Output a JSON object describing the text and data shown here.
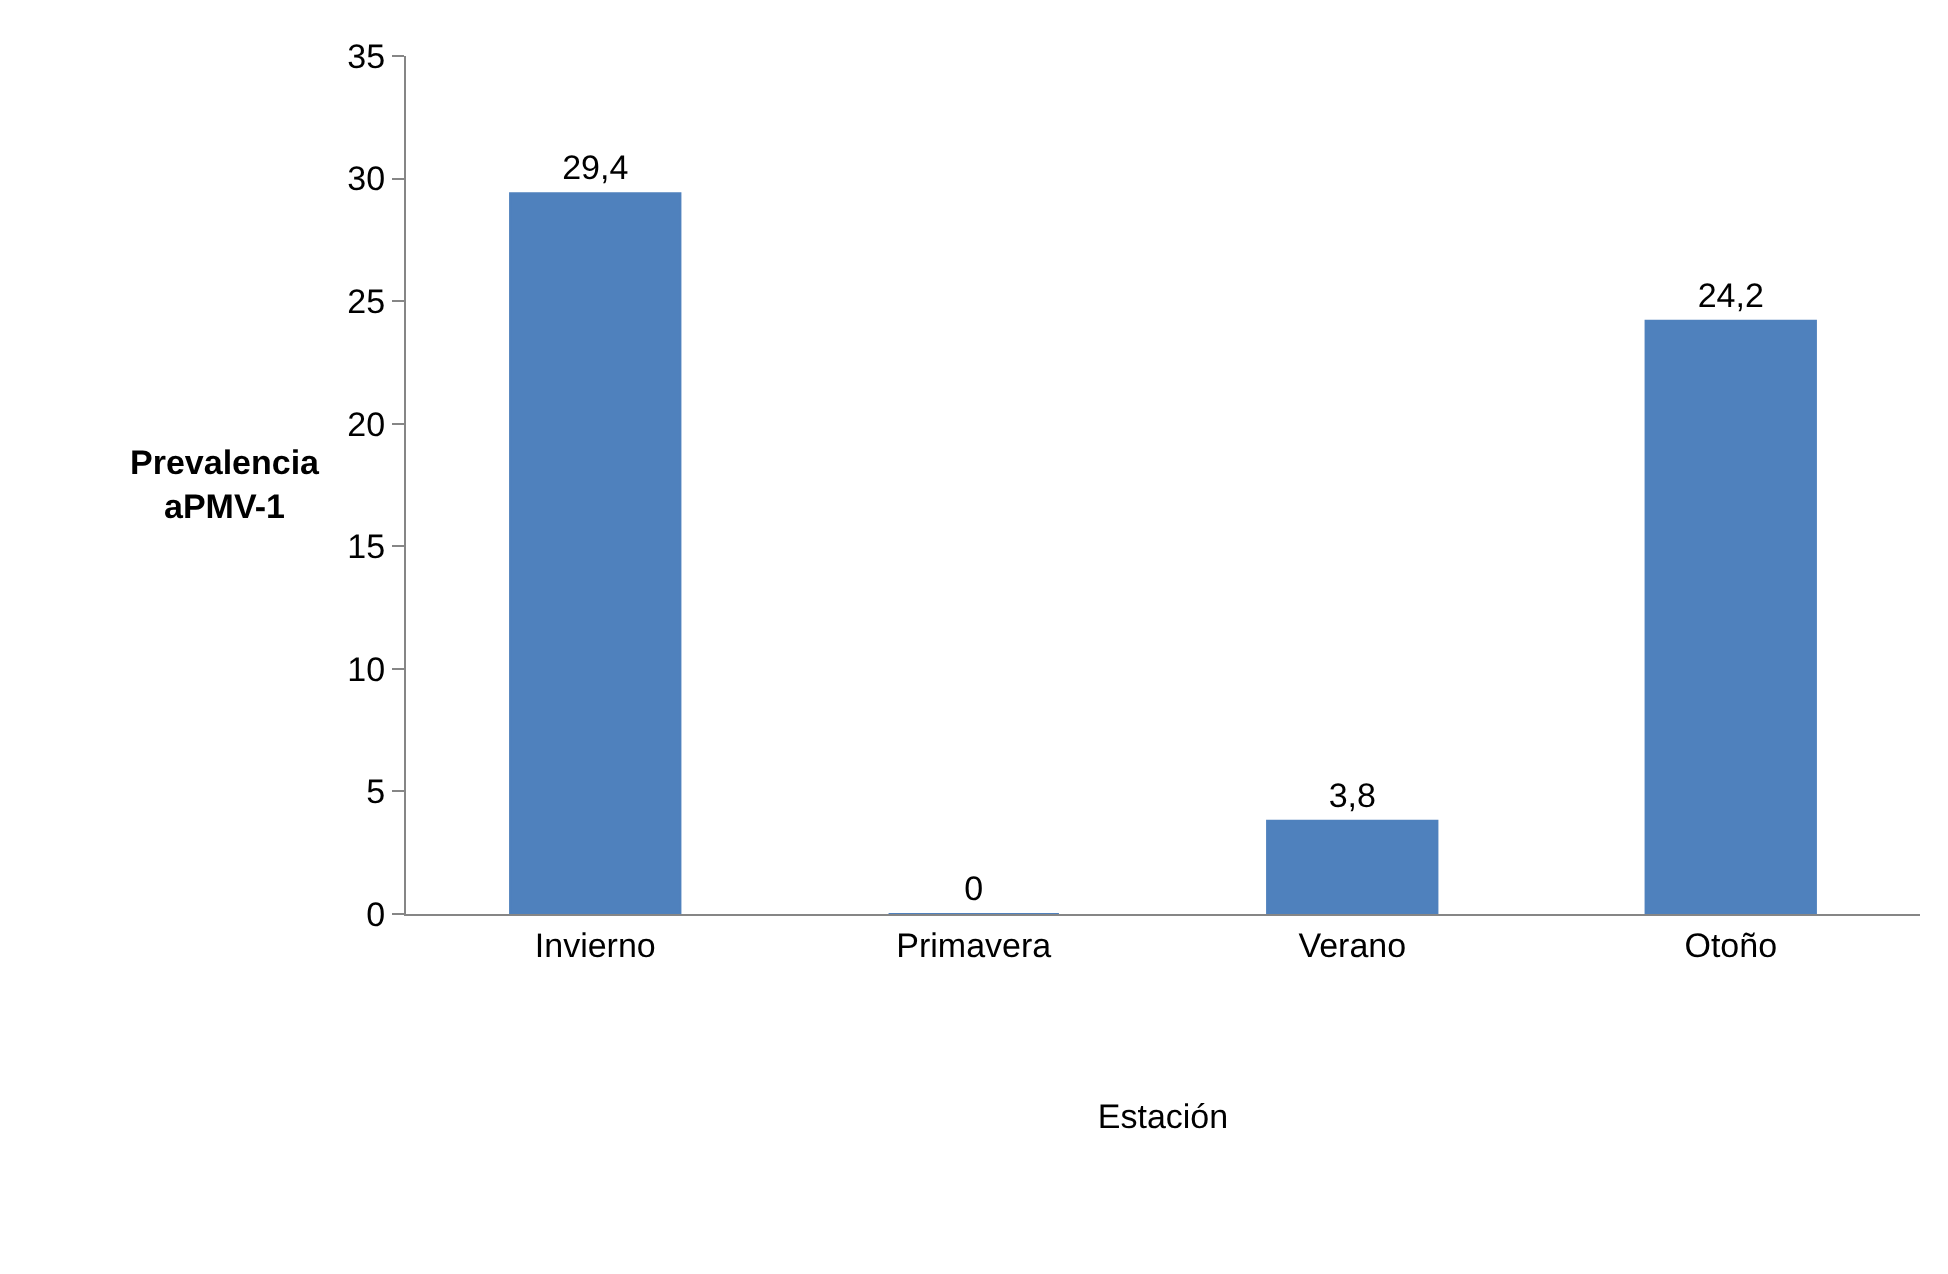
{
  "chart_data": {
    "type": "bar",
    "xlabel": "Estación",
    "ylabel": "Prevalencia\naPMV-1",
    "categories": [
      "Invierno",
      "Primavera",
      "Verano",
      "Otoño"
    ],
    "values": [
      29.4,
      0,
      3.8,
      24.2
    ],
    "value_labels": [
      "29,4",
      "0",
      "3,8",
      "24,2"
    ],
    "color": "#4f81bd",
    "ylim": [
      0,
      35
    ],
    "yticks": [
      0,
      5,
      10,
      15,
      20,
      25,
      30,
      35
    ],
    "legend": false
  }
}
